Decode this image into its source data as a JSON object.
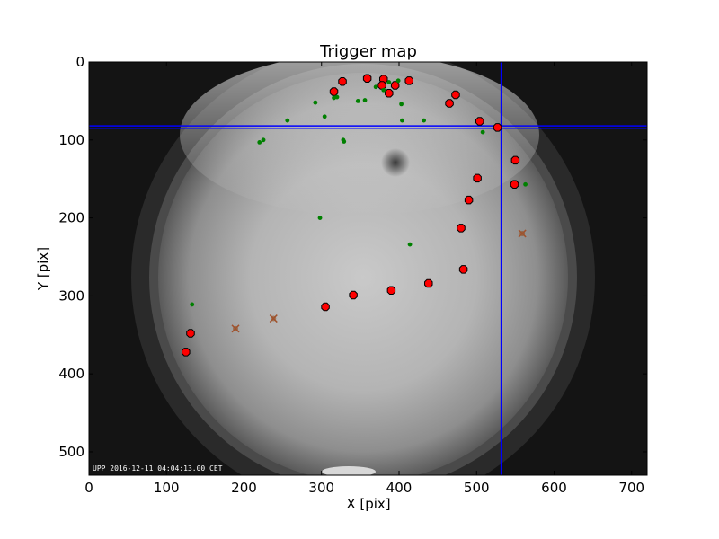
{
  "chart_data": {
    "type": "scatter",
    "title": "Trigger map",
    "xlabel": "X [pix]",
    "ylabel": "Y [pix]",
    "xlim": [
      0,
      720
    ],
    "ylim": [
      530,
      0
    ],
    "y_axis_inverted": true,
    "x_ticks": [
      0,
      100,
      200,
      300,
      400,
      500,
      600,
      700
    ],
    "y_ticks": [
      0,
      100,
      200,
      300,
      400,
      500
    ],
    "background": "all-sky fisheye camera image (grayscale)",
    "timestamp_text": "UPP 2016-12-11 04:04:13.00 CET",
    "crosshair": {
      "vertical_x": 532,
      "horizontal_y": [
        82,
        85
      ],
      "color": "#0000ff"
    },
    "series": [
      {
        "marker": "red-octagon",
        "color": "#ff0000",
        "points": [
          [
            125,
            372
          ],
          [
            131,
            348
          ],
          [
            305,
            314
          ],
          [
            341,
            299
          ],
          [
            390,
            293
          ],
          [
            438,
            284
          ],
          [
            483,
            266
          ],
          [
            480,
            213
          ],
          [
            490,
            177
          ],
          [
            501,
            149
          ],
          [
            549,
            157
          ],
          [
            550,
            126
          ],
          [
            527,
            84
          ],
          [
            504,
            76
          ],
          [
            473,
            42
          ],
          [
            465,
            53
          ],
          [
            413,
            24
          ],
          [
            395,
            30
          ],
          [
            387,
            40
          ],
          [
            380,
            22
          ],
          [
            378,
            30
          ],
          [
            359,
            21
          ],
          [
            327,
            25
          ],
          [
            316,
            38
          ]
        ]
      },
      {
        "marker": "green-dot",
        "color": "#008000",
        "points": [
          [
            133,
            311
          ],
          [
            220,
            103
          ],
          [
            225,
            100
          ],
          [
            256,
            75
          ],
          [
            292,
            52
          ],
          [
            298,
            200
          ],
          [
            304,
            70
          ],
          [
            316,
            46
          ],
          [
            320,
            45
          ],
          [
            328,
            100
          ],
          [
            329,
            102
          ],
          [
            347,
            50
          ],
          [
            356,
            49
          ],
          [
            370,
            32
          ],
          [
            380,
            36
          ],
          [
            387,
            26
          ],
          [
            399,
            24
          ],
          [
            403,
            54
          ],
          [
            404,
            75
          ],
          [
            414,
            234
          ],
          [
            432,
            75
          ],
          [
            508,
            90
          ],
          [
            563,
            157
          ]
        ]
      },
      {
        "marker": "brown-x",
        "color": "#a0522d",
        "points": [
          [
            189,
            342
          ],
          [
            238,
            329
          ],
          [
            559,
            220
          ]
        ]
      }
    ]
  }
}
